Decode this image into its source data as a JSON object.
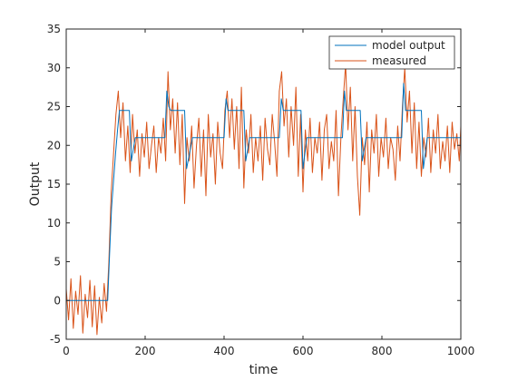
{
  "chart_data": {
    "type": "line",
    "title": "",
    "xlabel": "time",
    "ylabel": "Output",
    "xlim": [
      0,
      1000
    ],
    "ylim": [
      -5,
      35
    ],
    "xticks": [
      0,
      200,
      400,
      600,
      800,
      1000
    ],
    "yticks": [
      -5,
      0,
      5,
      10,
      15,
      20,
      25,
      30,
      35
    ],
    "grid": false,
    "legend": "top-right",
    "series": [
      {
        "name": "model output",
        "color": "#0072BD",
        "x": [
          0,
          105,
          110,
          115,
          125,
          130,
          135,
          160,
          165,
          175,
          180,
          250,
          255,
          260,
          265,
          300,
          305,
          320,
          400,
          405,
          410,
          415,
          450,
          455,
          465,
          540,
          545,
          550,
          555,
          595,
          600,
          610,
          700,
          705,
          710,
          715,
          745,
          750,
          760,
          850,
          855,
          860,
          865,
          900,
          905,
          915,
          1000
        ],
        "y": [
          0,
          0,
          6,
          12,
          19,
          22,
          24.5,
          24.5,
          18,
          21,
          21,
          21,
          27,
          25,
          24.5,
          24.5,
          17,
          21,
          21,
          26,
          24.5,
          24.5,
          24.5,
          18,
          21,
          21,
          26,
          24.5,
          24.5,
          24.5,
          17,
          21,
          21,
          27,
          24.5,
          24.5,
          24.5,
          18,
          21,
          21,
          28,
          24.5,
          24.5,
          24.5,
          17,
          21,
          21
        ]
      },
      {
        "name": "measured",
        "color": "#D95319",
        "x": [
          0,
          6,
          12,
          18,
          24,
          30,
          36,
          42,
          48,
          54,
          60,
          66,
          72,
          78,
          84,
          90,
          96,
          102,
          108,
          114,
          120,
          126,
          132,
          138,
          144,
          150,
          156,
          162,
          168,
          174,
          180,
          186,
          192,
          198,
          204,
          210,
          216,
          222,
          228,
          234,
          240,
          246,
          252,
          258,
          264,
          270,
          276,
          282,
          288,
          294,
          300,
          306,
          312,
          318,
          324,
          330,
          336,
          342,
          348,
          354,
          360,
          366,
          372,
          378,
          384,
          390,
          396,
          402,
          408,
          414,
          420,
          426,
          432,
          438,
          444,
          450,
          456,
          462,
          468,
          474,
          480,
          486,
          492,
          498,
          504,
          510,
          516,
          522,
          528,
          534,
          540,
          546,
          552,
          558,
          564,
          570,
          576,
          582,
          588,
          594,
          600,
          606,
          612,
          618,
          624,
          630,
          636,
          642,
          648,
          654,
          660,
          666,
          672,
          678,
          684,
          690,
          696,
          702,
          708,
          714,
          720,
          726,
          732,
          738,
          744,
          750,
          756,
          762,
          768,
          774,
          780,
          786,
          792,
          798,
          804,
          810,
          816,
          822,
          828,
          834,
          840,
          846,
          852,
          858,
          864,
          870,
          876,
          882,
          888,
          894,
          900,
          906,
          912,
          918,
          924,
          930,
          936,
          942,
          948,
          954,
          960,
          966,
          972,
          978,
          984,
          990,
          996,
          1000
        ],
        "y": [
          1.5,
          -2.5,
          2.8,
          -3.6,
          1.2,
          -1.8,
          3.2,
          -4.2,
          0.8,
          -2.2,
          2.6,
          -3.4,
          1.9,
          -4.4,
          0.4,
          -2.9,
          2.2,
          -1.4,
          5,
          14,
          19,
          24,
          27,
          21,
          25.5,
          18,
          22.5,
          16.5,
          24,
          19,
          22,
          16,
          21.5,
          18.5,
          23,
          17,
          20,
          22.5,
          16.5,
          21,
          19,
          23.5,
          18,
          29.5,
          22,
          26,
          19,
          25.5,
          17.5,
          24,
          12.5,
          21,
          18,
          22.5,
          14.5,
          20,
          23.5,
          16,
          22,
          13.5,
          24,
          18.5,
          21.5,
          15,
          23,
          19,
          17,
          24.5,
          27,
          21,
          26,
          19.5,
          25,
          17,
          27.5,
          14.5,
          22,
          19,
          24,
          16.5,
          21,
          18,
          22.5,
          15.5,
          23.5,
          19.5,
          17.5,
          24,
          20.5,
          16,
          27,
          29.5,
          22.5,
          26,
          18.5,
          25,
          20,
          27.5,
          16,
          24,
          14,
          22,
          18,
          23.5,
          16.5,
          21,
          19,
          23,
          15.5,
          22,
          24,
          17,
          20.5,
          18,
          24.5,
          13.5,
          21,
          26,
          30.5,
          22,
          27.5,
          18,
          25,
          16,
          11,
          21,
          17.5,
          23,
          14,
          22,
          19,
          24,
          16,
          21,
          18.5,
          23.5,
          17,
          21,
          19.5,
          15.5,
          22.5,
          18,
          25,
          30,
          23,
          27,
          19,
          25.5,
          17,
          23,
          16,
          21,
          18.5,
          23.5,
          16.5,
          22,
          19,
          24,
          17,
          20.5,
          18,
          22.5,
          16.5,
          23,
          19.5,
          21.5,
          18,
          22.5
        ]
      }
    ]
  }
}
